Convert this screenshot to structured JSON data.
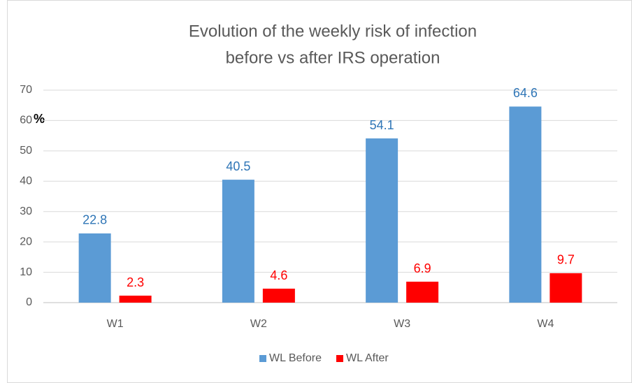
{
  "chart_data": {
    "type": "bar",
    "title": [
      "Evolution of the weekly risk of infection",
      "before vs after IRS operation"
    ],
    "y_label": "%",
    "categories": [
      "W1",
      "W2",
      "W3",
      "W4"
    ],
    "series": [
      {
        "name": "WL Before",
        "color": "#5b9bd5",
        "label_color": "#2e75b6",
        "values": [
          22.8,
          40.5,
          54.1,
          64.6
        ]
      },
      {
        "name": "WL After",
        "color": "#ff0000",
        "label_color": "#ff0000",
        "values": [
          2.3,
          4.6,
          6.9,
          9.7
        ]
      }
    ],
    "ylim": [
      0,
      70
    ],
    "yticks": [
      0,
      10,
      20,
      30,
      40,
      50,
      60,
      70
    ],
    "grid": true,
    "legend": "bottom"
  }
}
